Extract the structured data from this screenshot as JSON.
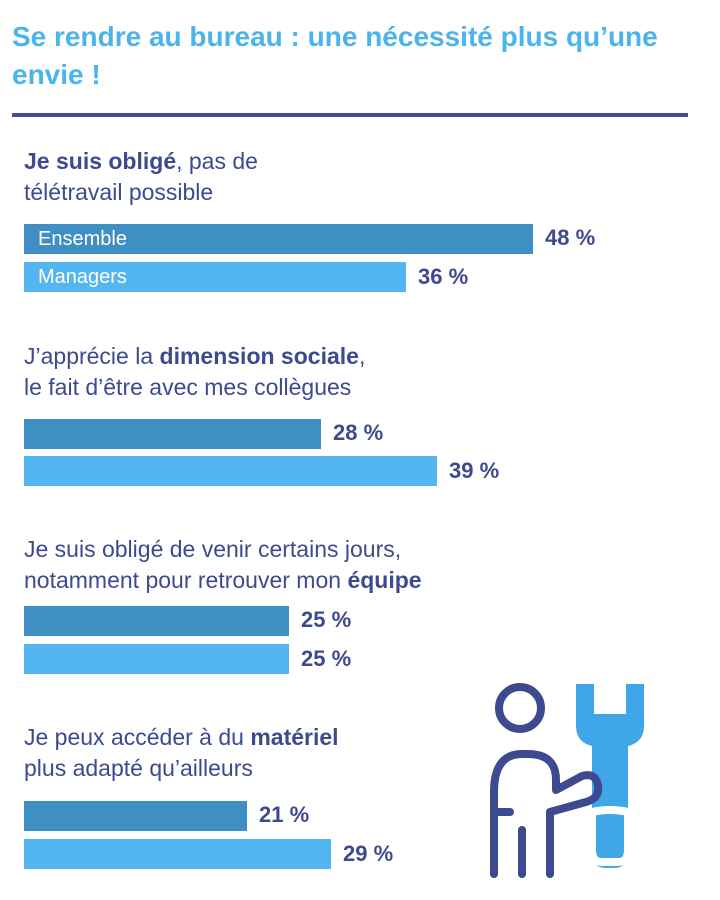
{
  "header": {
    "title": "Se rendre au bureau  : une nécessité plus qu’une envie !"
  },
  "colors": {
    "title": "#4cb4ec",
    "text": "#3d4a8f",
    "rule": "#3f4f96",
    "ensemble": "#3f8fc4",
    "managers": "#54b6f0"
  },
  "chart_data": {
    "type": "bar",
    "orientation": "horizontal",
    "title": "Se rendre au bureau  : une nécessité plus qu’une envie !",
    "value_suffix": " %",
    "series": [
      {
        "name": "Ensemble",
        "color": "#3f8fc4"
      },
      {
        "name": "Managers",
        "color": "#54b6f0"
      }
    ],
    "groups": [
      {
        "pre": "",
        "bold1": "Je suis obligé",
        "mid": ", pas de",
        "bold2": "",
        "line2": "télétravail possible",
        "values": [
          48,
          36
        ]
      },
      {
        "pre": "J’apprécie la ",
        "bold1": "dimension sociale",
        "mid": ",",
        "bold2": "",
        "line2": "le fait d’être avec mes collègues",
        "values": [
          28,
          39
        ]
      },
      {
        "pre": "Je suis obligé de venir certains jours,",
        "bold1": "",
        "mid": "",
        "line2_pre": "notamment pour retrouver mon ",
        "line2_bold": "équipe",
        "values": [
          25,
          25
        ]
      },
      {
        "pre": "Je peux accéder à du ",
        "bold1": "matériel",
        "mid": "",
        "line2": "plus adapté qu’ailleurs",
        "values": [
          21,
          29
        ]
      }
    ]
  },
  "illustration": {
    "person_icon": "person-outline-icon",
    "wrench_icon": "wrench-icon",
    "person_color": "#3d4a8f",
    "wrench_color": "#3fa6e8"
  }
}
